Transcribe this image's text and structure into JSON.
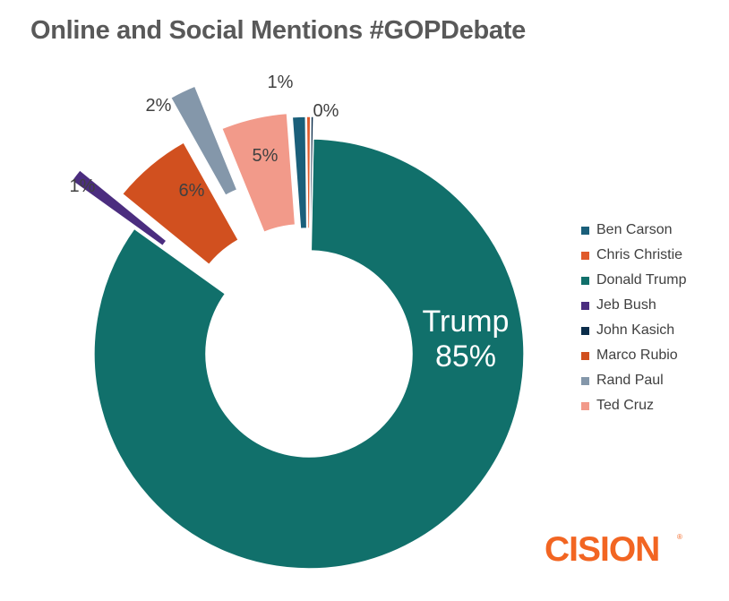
{
  "title": "Online and Social Mentions #GOPDebate",
  "chart_data": {
    "type": "pie",
    "style": "exploded doughnut",
    "title": "Online and Social Mentions #GOPDebate",
    "series": [
      {
        "name": "Ben Carson",
        "value": 1,
        "label": "1%",
        "color": "#1a5f7a"
      },
      {
        "name": "Chris Christie",
        "value": 0.3,
        "label": "0%",
        "color": "#e05a2b"
      },
      {
        "name": "Donald Trump",
        "value": 85,
        "label": "Trump\n85%",
        "color": "#11706b"
      },
      {
        "name": "Jeb Bush",
        "value": 1,
        "label": "1%",
        "color": "#4b2d7f"
      },
      {
        "name": "John Kasich",
        "value": 0.2,
        "label": "",
        "color": "#0b2d4a"
      },
      {
        "name": "Marco Rubio",
        "value": 6,
        "label": "6%",
        "color": "#d1501f"
      },
      {
        "name": "Rand Paul",
        "value": 2,
        "label": "2%",
        "color": "#8497aa"
      },
      {
        "name": "Ted Cruz",
        "value": 5,
        "label": "5%",
        "color": "#f29a8a"
      }
    ],
    "legend_position": "right"
  },
  "brand": {
    "name": "CISION",
    "mark": "®"
  }
}
